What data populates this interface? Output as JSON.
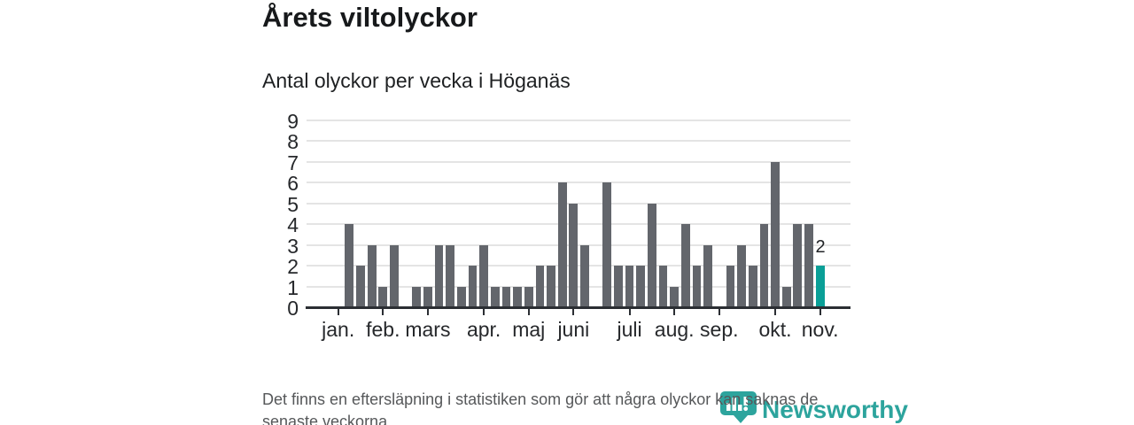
{
  "chart_data": {
    "type": "bar",
    "title": "Årets viltolyckor",
    "subtitle": "Antal olyckor per vecka i Höganäs",
    "x_unit": "vecka",
    "weekly_values": [
      0,
      4,
      2,
      3,
      1,
      3,
      0,
      1,
      1,
      3,
      3,
      1,
      2,
      3,
      1,
      1,
      1,
      1,
      2,
      2,
      6,
      5,
      3,
      0,
      6,
      2,
      2,
      2,
      5,
      2,
      1,
      4,
      2,
      3,
      0,
      2,
      3,
      2,
      4,
      7,
      1,
      4,
      4,
      2
    ],
    "month_ticks": [
      {
        "index": 0,
        "label": "jan."
      },
      {
        "index": 4,
        "label": "feb."
      },
      {
        "index": 8,
        "label": "mars"
      },
      {
        "index": 13,
        "label": "apr."
      },
      {
        "index": 17,
        "label": "maj"
      },
      {
        "index": 21,
        "label": "juni"
      },
      {
        "index": 26,
        "label": "juli"
      },
      {
        "index": 30,
        "label": "aug."
      },
      {
        "index": 34,
        "label": "sep."
      },
      {
        "index": 39,
        "label": "okt."
      },
      {
        "index": 43,
        "label": "nov."
      }
    ],
    "y_ticks": [
      0,
      1,
      2,
      3,
      4,
      5,
      6,
      7,
      8,
      9
    ],
    "ylim": [
      0,
      9
    ],
    "grid": true,
    "legend": "none",
    "highlight": {
      "week_index": 43,
      "value": 2,
      "value_label": "2"
    },
    "colors": {
      "bar": "#63666c",
      "highlight": "#0a9f97",
      "grid": "#e4e4e4",
      "axis": "#2b2e33",
      "title": "#17191b",
      "text": "#26282b"
    }
  },
  "footer": {
    "note_lines": [
      "Det finns en eftersläpning i statistiken som gör att några olyckor kan saknas de",
      "senaste veckorna."
    ],
    "brand": "Newsworthy",
    "brand_color": "#2da49d"
  }
}
